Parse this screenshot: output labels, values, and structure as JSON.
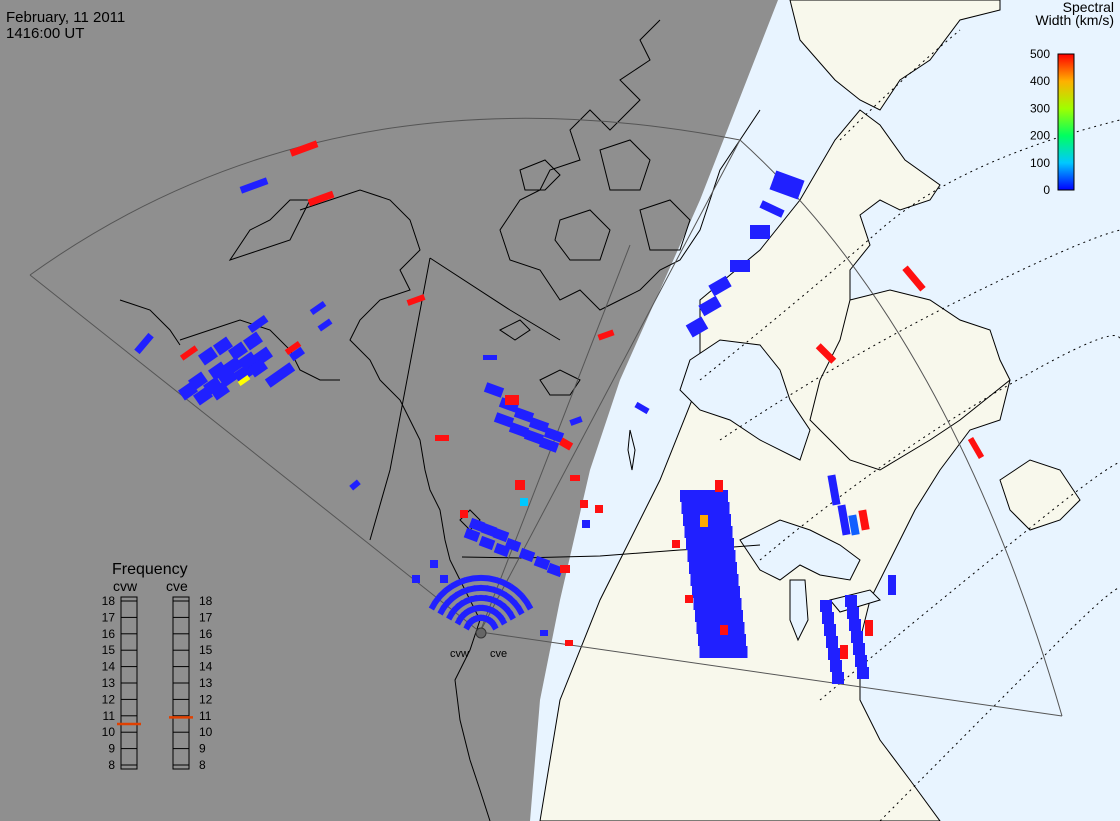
{
  "header": {
    "date": "February, 11 2011",
    "time": "1416:00 UT"
  },
  "colorbar": {
    "title_line1": "Spectral",
    "title_line2": "Width (km/s)",
    "ticks": [
      "500",
      "400",
      "300",
      "200",
      "100",
      "0"
    ],
    "tick_values": [
      500,
      400,
      300,
      200,
      100,
      0
    ],
    "colors": [
      "#0000ff",
      "#00c8ff",
      "#00ff60",
      "#a0ff00",
      "#ffb000",
      "#ff0000"
    ]
  },
  "frequency_panel": {
    "title": "Frequency",
    "radars": [
      {
        "label": "cvw",
        "frequency_mhz": 10.5
      },
      {
        "label": "cve",
        "frequency_mhz": 10.9
      }
    ],
    "scale": [
      "18",
      "17",
      "16",
      "15",
      "14",
      "13",
      "12",
      "11",
      "10",
      "9",
      "8"
    ],
    "scale_min": 8,
    "scale_max": 18,
    "marker_color": "#e04000"
  },
  "radar_sites": [
    {
      "label": "cvw"
    },
    {
      "label": "cve"
    }
  ],
  "colors": {
    "night": "#8f8f8f",
    "land_day": "#f8f8ec",
    "ocean_day": "#e8f4ff",
    "coast": "#000000",
    "fov": "#555555",
    "echo_low": "#2020ff",
    "echo_high": "#ff1010"
  }
}
